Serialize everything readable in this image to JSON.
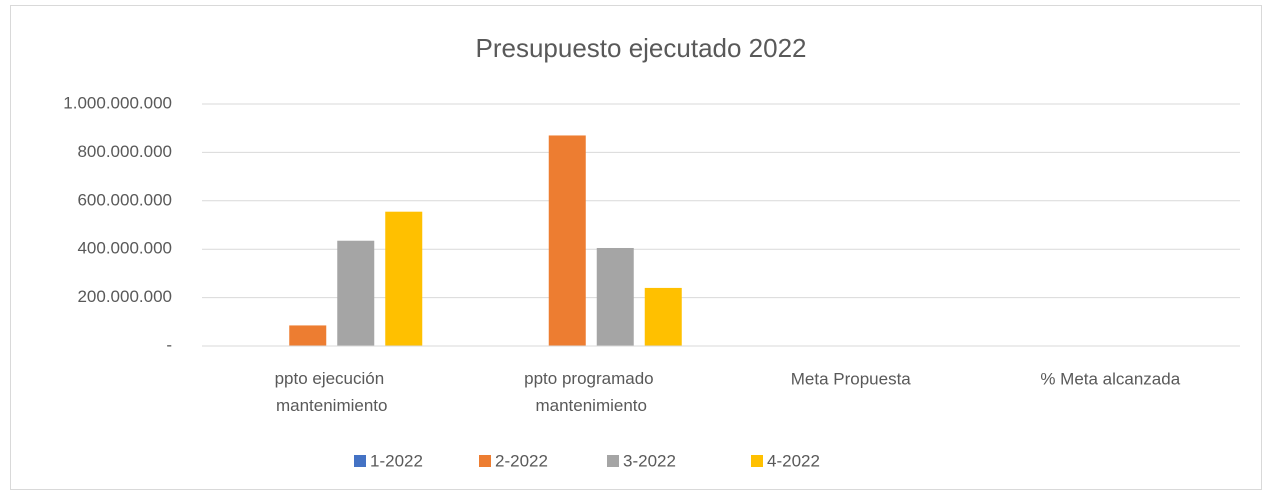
{
  "chart_data": {
    "type": "bar",
    "title": "Presupuesto ejecutado 2022",
    "categories": [
      "ppto ejecución mantenimiento",
      "ppto programado mantenimiento",
      "Meta Propuesta",
      "% Meta alcanzada"
    ],
    "series": [
      {
        "name": "1-2022",
        "color": "#4472c4",
        "values": [
          0,
          0,
          0,
          0
        ]
      },
      {
        "name": "2-2022",
        "color": "#ed7d31",
        "values": [
          85000000,
          870000000,
          0,
          0
        ]
      },
      {
        "name": "3-2022",
        "color": "#a5a5a5",
        "values": [
          435000000,
          405000000,
          0,
          0
        ]
      },
      {
        "name": "4-2022",
        "color": "#ffc000",
        "values": [
          555000000,
          240000000,
          0,
          0
        ]
      }
    ],
    "ylim": [
      0,
      1000000000
    ],
    "yticks": [
      {
        "value": 0,
        "label": "-"
      },
      {
        "value": 200000000,
        "label": "200.000.000"
      },
      {
        "value": 400000000,
        "label": "400.000.000"
      },
      {
        "value": 600000000,
        "label": "600.000.000"
      },
      {
        "value": 800000000,
        "label": "800.000.000"
      },
      {
        "value": 1000000000,
        "label": "1.000.000.000"
      }
    ],
    "grid": true,
    "legend": "bottom"
  }
}
